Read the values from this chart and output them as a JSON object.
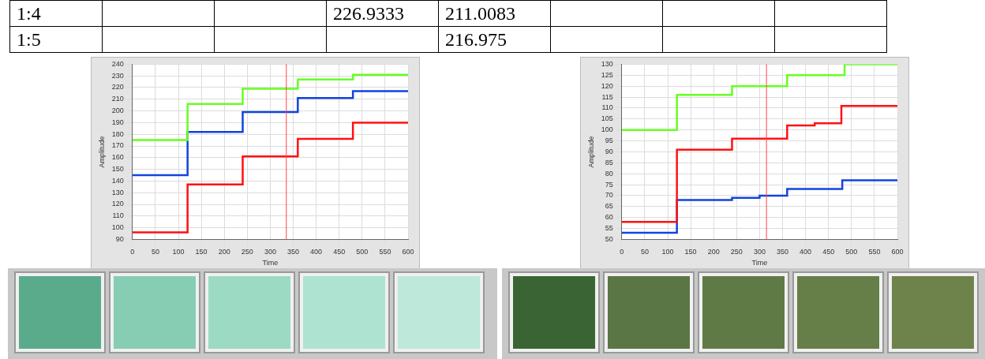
{
  "chart_data": [
    {
      "type": "step",
      "xlabel": "Time",
      "ylabel": "Amplitude",
      "xlim": [
        0,
        600
      ],
      "xticks": [
        0,
        50,
        100,
        150,
        200,
        250,
        300,
        350,
        400,
        450,
        500,
        550,
        600
      ],
      "ylim": [
        90,
        240
      ],
      "yticks": [
        90,
        100,
        110,
        120,
        130,
        140,
        150,
        160,
        170,
        180,
        190,
        200,
        210,
        220,
        230,
        240
      ],
      "grid": true,
      "tick_labels": "xy",
      "series": [
        {
          "color": "#66ff22",
          "x": [
            0,
            120,
            240,
            360,
            480,
            600
          ],
          "values": [
            175,
            206,
            219,
            227,
            231,
            231
          ]
        },
        {
          "color": "#1144dd",
          "x": [
            0,
            120,
            240,
            360,
            480,
            600
          ],
          "values": [
            145,
            182,
            199,
            211,
            217,
            217
          ]
        },
        {
          "color": "#ff1111",
          "x": [
            0,
            120,
            240,
            360,
            480,
            600
          ],
          "values": [
            96,
            137,
            161,
            176,
            190,
            190
          ]
        }
      ],
      "ref_lines": [
        {
          "axis": "x",
          "value": 335,
          "color": "#ff4444"
        }
      ]
    },
    {
      "type": "step",
      "xlabel": "Time",
      "ylabel": "Amplitude",
      "xlim": [
        0,
        600
      ],
      "xticks": [
        0,
        50,
        100,
        150,
        200,
        250,
        300,
        350,
        400,
        450,
        500,
        550,
        600
      ],
      "ylim": [
        50,
        130
      ],
      "yticks": [
        50,
        55,
        60,
        65,
        70,
        75,
        80,
        85,
        90,
        95,
        100,
        105,
        110,
        115,
        120,
        125,
        130
      ],
      "grid": true,
      "tick_labels": "xy",
      "series": [
        {
          "color": "#66ff22",
          "x": [
            0,
            120,
            240,
            360,
            485,
            600
          ],
          "values": [
            100,
            116,
            120,
            125,
            130,
            130
          ]
        },
        {
          "color": "#ff1111",
          "x": [
            0,
            120,
            240,
            360,
            420,
            478,
            600
          ],
          "values": [
            58,
            91,
            96,
            102,
            103,
            111,
            111
          ]
        },
        {
          "color": "#1144dd",
          "x": [
            0,
            120,
            240,
            300,
            360,
            480,
            600
          ],
          "values": [
            53,
            68,
            69,
            70,
            73,
            77,
            77
          ]
        }
      ],
      "ref_lines": [
        {
          "axis": "x",
          "value": 315,
          "color": "#ff4444"
        }
      ]
    },
    {
      "type": "other",
      "annotations": [
        "1:4",
        "226.9333",
        "211.0083",
        "1:5",
        "216.975"
      ]
    }
  ]
}
